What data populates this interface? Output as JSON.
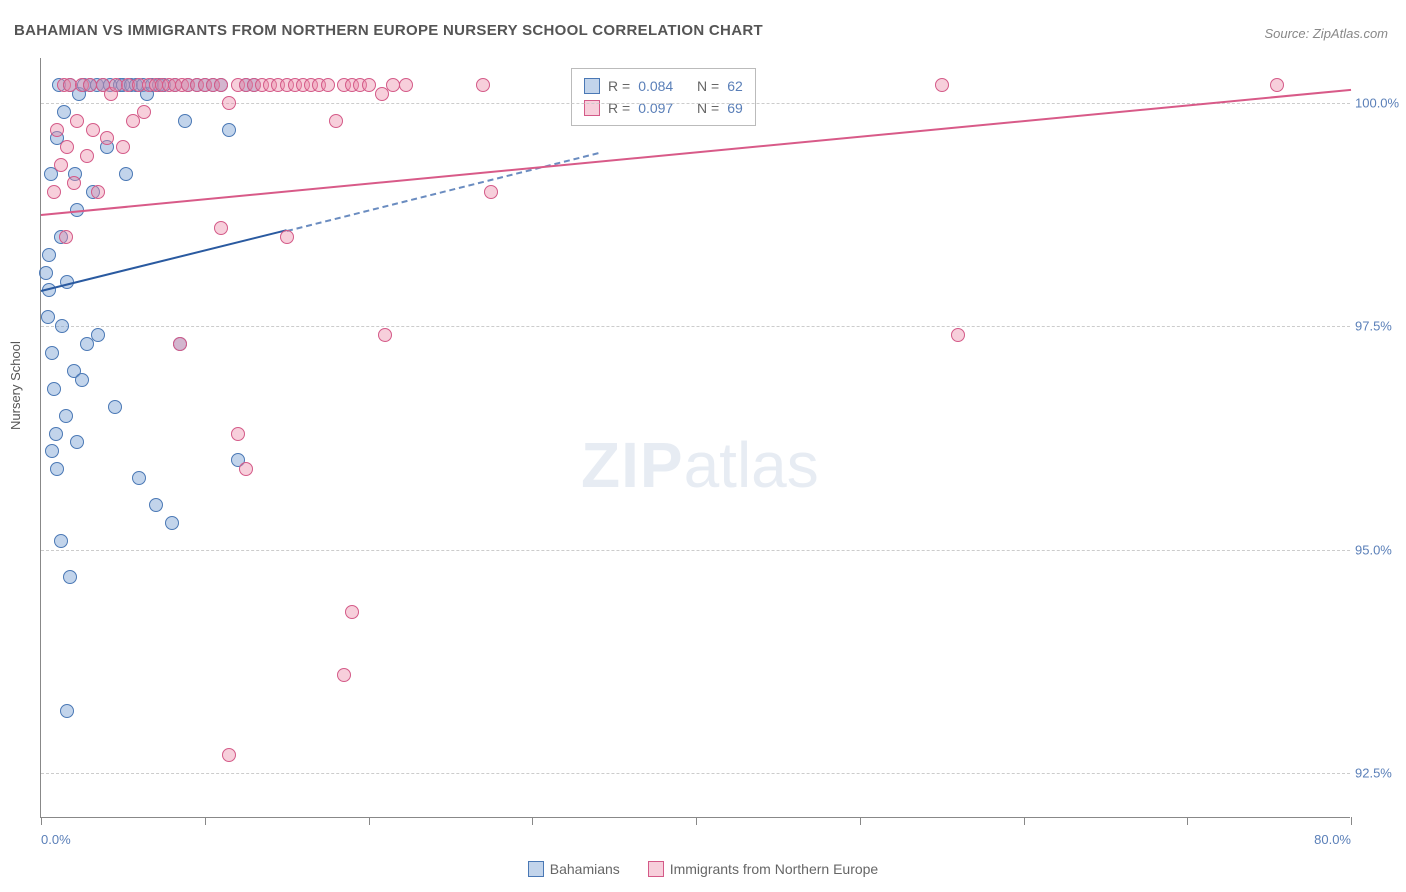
{
  "title": "BAHAMIAN VS IMMIGRANTS FROM NORTHERN EUROPE NURSERY SCHOOL CORRELATION CHART",
  "source_label": "Source: ZipAtlas.com",
  "yaxis_title": "Nursery School",
  "watermark": {
    "bold": "ZIP",
    "rest": "atlas"
  },
  "chart": {
    "type": "scatter",
    "xlim": [
      0,
      80
    ],
    "ylim": [
      92,
      100.5
    ],
    "xticks": [
      0,
      10,
      20,
      30,
      40,
      50,
      60,
      70,
      80
    ],
    "xticks_labels": {
      "0": "0.0%",
      "80": "80.0%"
    },
    "yticks": [
      92.5,
      95.0,
      97.5,
      100.0
    ],
    "ytick_labels": [
      "92.5%",
      "95.0%",
      "97.5%",
      "100.0%"
    ],
    "grid_color": "#cccccc",
    "axis_color": "#888888",
    "background": "#ffffff",
    "point_radius": 7,
    "series": [
      {
        "name": "Bahamians",
        "fill": "rgba(120,160,210,0.45)",
        "stroke": "#4a78b5",
        "trend_color": "#2a5aa0",
        "trend_dash_color": "#6a8cc0",
        "r_label": "R =",
        "r_value": "0.084",
        "n_label": "N =",
        "n_value": "62",
        "trend": {
          "x1": 0,
          "y1": 97.9,
          "x2": 15,
          "y2": 98.58,
          "dash_to_x": 34,
          "dash_to_y": 99.45
        },
        "points": [
          [
            0.3,
            98.1
          ],
          [
            0.4,
            97.6
          ],
          [
            0.5,
            98.3
          ],
          [
            0.6,
            99.2
          ],
          [
            0.7,
            97.2
          ],
          [
            0.8,
            96.8
          ],
          [
            1.0,
            99.6
          ],
          [
            1.1,
            100.2
          ],
          [
            1.2,
            98.5
          ],
          [
            1.3,
            97.5
          ],
          [
            1.4,
            99.9
          ],
          [
            1.5,
            96.5
          ],
          [
            1.6,
            98.0
          ],
          [
            1.8,
            100.2
          ],
          [
            2.0,
            97.0
          ],
          [
            2.1,
            99.2
          ],
          [
            2.2,
            98.8
          ],
          [
            2.3,
            100.1
          ],
          [
            2.5,
            96.9
          ],
          [
            2.6,
            100.2
          ],
          [
            2.8,
            97.3
          ],
          [
            3.0,
            100.2
          ],
          [
            3.2,
            99.0
          ],
          [
            3.4,
            100.2
          ],
          [
            3.5,
            97.4
          ],
          [
            3.8,
            100.2
          ],
          [
            4.0,
            99.5
          ],
          [
            4.2,
            100.2
          ],
          [
            4.5,
            96.6
          ],
          [
            4.8,
            100.2
          ],
          [
            5.0,
            100.2
          ],
          [
            5.2,
            99.2
          ],
          [
            5.5,
            100.2
          ],
          [
            5.8,
            100.2
          ],
          [
            6.0,
            95.8
          ],
          [
            6.2,
            100.2
          ],
          [
            6.5,
            100.1
          ],
          [
            6.8,
            100.2
          ],
          [
            7.0,
            95.5
          ],
          [
            7.2,
            100.2
          ],
          [
            7.5,
            100.2
          ],
          [
            8.0,
            95.3
          ],
          [
            8.2,
            100.2
          ],
          [
            8.5,
            97.3
          ],
          [
            8.8,
            99.8
          ],
          [
            9.0,
            100.2
          ],
          [
            9.5,
            100.2
          ],
          [
            10.0,
            100.2
          ],
          [
            10.5,
            100.2
          ],
          [
            11.0,
            100.2
          ],
          [
            11.5,
            99.7
          ],
          [
            12.0,
            96.0
          ],
          [
            12.5,
            100.2
          ],
          [
            13.0,
            100.2
          ],
          [
            1.2,
            95.1
          ],
          [
            1.8,
            94.7
          ],
          [
            2.2,
            96.2
          ],
          [
            0.9,
            96.3
          ],
          [
            1.6,
            93.2
          ],
          [
            0.5,
            97.9
          ],
          [
            1.0,
            95.9
          ],
          [
            0.7,
            96.1
          ]
        ]
      },
      {
        "name": "Immigrants from Northern Europe",
        "fill": "rgba(235,140,170,0.42)",
        "stroke": "#d45a88",
        "trend_color": "#d85a88",
        "r_label": "R =",
        "r_value": "0.097",
        "n_label": "N =",
        "n_value": "69",
        "trend": {
          "x1": 0,
          "y1": 98.75,
          "x2": 80,
          "y2": 100.15
        },
        "points": [
          [
            0.8,
            99.0
          ],
          [
            1.0,
            99.7
          ],
          [
            1.2,
            99.3
          ],
          [
            1.4,
            100.2
          ],
          [
            1.6,
            99.5
          ],
          [
            1.8,
            100.2
          ],
          [
            2.0,
            99.1
          ],
          [
            2.2,
            99.8
          ],
          [
            2.5,
            100.2
          ],
          [
            2.8,
            99.4
          ],
          [
            3.0,
            100.2
          ],
          [
            3.2,
            99.7
          ],
          [
            3.5,
            99.0
          ],
          [
            3.8,
            100.2
          ],
          [
            4.0,
            99.6
          ],
          [
            4.3,
            100.1
          ],
          [
            4.6,
            100.2
          ],
          [
            5.0,
            99.5
          ],
          [
            5.3,
            100.2
          ],
          [
            5.6,
            99.8
          ],
          [
            6.0,
            100.2
          ],
          [
            6.3,
            99.9
          ],
          [
            6.6,
            100.2
          ],
          [
            7.0,
            100.2
          ],
          [
            7.4,
            100.2
          ],
          [
            7.8,
            100.2
          ],
          [
            8.2,
            100.2
          ],
          [
            8.6,
            100.2
          ],
          [
            9.0,
            100.2
          ],
          [
            9.5,
            100.2
          ],
          [
            10.0,
            100.2
          ],
          [
            10.5,
            100.2
          ],
          [
            11.0,
            100.2
          ],
          [
            11.5,
            100.0
          ],
          [
            12.0,
            100.2
          ],
          [
            12.5,
            100.2
          ],
          [
            13.0,
            100.2
          ],
          [
            13.5,
            100.2
          ],
          [
            14.0,
            100.2
          ],
          [
            14.5,
            100.2
          ],
          [
            15.0,
            100.2
          ],
          [
            15.5,
            100.2
          ],
          [
            16.0,
            100.2
          ],
          [
            16.5,
            100.2
          ],
          [
            17.0,
            100.2
          ],
          [
            17.5,
            100.2
          ],
          [
            18.0,
            99.8
          ],
          [
            18.5,
            100.2
          ],
          [
            19.0,
            100.2
          ],
          [
            19.5,
            100.2
          ],
          [
            20.0,
            100.2
          ],
          [
            20.8,
            100.1
          ],
          [
            21.5,
            100.2
          ],
          [
            22.3,
            100.2
          ],
          [
            27.0,
            100.2
          ],
          [
            27.5,
            99.0
          ],
          [
            55.0,
            100.2
          ],
          [
            75.5,
            100.2
          ],
          [
            11.0,
            98.6
          ],
          [
            15.0,
            98.5
          ],
          [
            8.5,
            97.3
          ],
          [
            21.0,
            97.4
          ],
          [
            18.5,
            93.6
          ],
          [
            19.0,
            94.3
          ],
          [
            11.5,
            92.7
          ],
          [
            12.0,
            96.3
          ],
          [
            12.5,
            95.9
          ],
          [
            56.0,
            97.4
          ],
          [
            1.5,
            98.5
          ]
        ]
      }
    ]
  },
  "bottom_legend": [
    {
      "label": "Bahamians",
      "fill": "rgba(120,160,210,0.45)",
      "stroke": "#4a78b5"
    },
    {
      "label": "Immigrants from Northern Europe",
      "fill": "rgba(235,140,170,0.42)",
      "stroke": "#d45a88"
    }
  ]
}
